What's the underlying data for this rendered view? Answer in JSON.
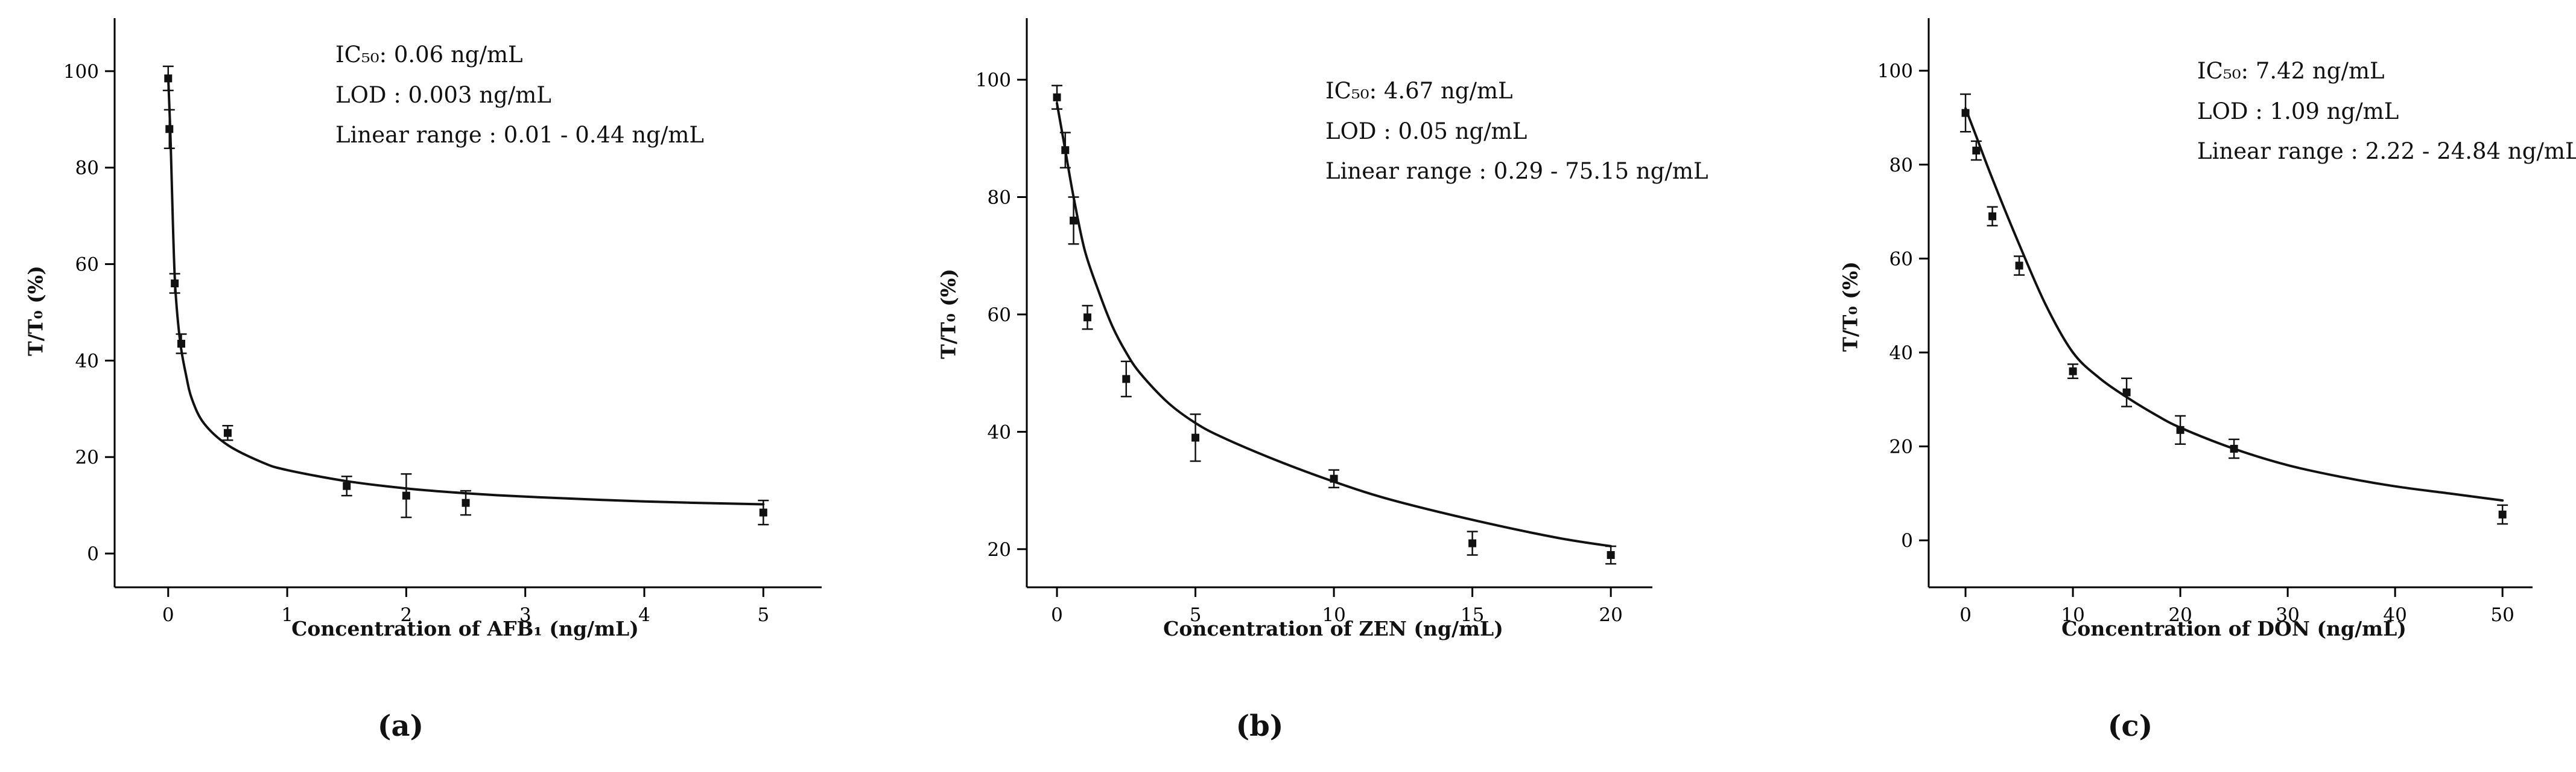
{
  "page": {
    "background": "#ffffff",
    "ink_color": "#111111"
  },
  "chart_data": [
    {
      "type": "scatter",
      "panel_label": "(a)",
      "xlabel": "Concentration of AFB₁ (ng/mL)",
      "ylabel": "T/T₀ (%)",
      "annotations": [
        "IC₅₀: 0.06 ng/mL",
        "LOD : 0.003 ng/mL",
        "Linear range : 0.01 - 0.44 ng/mL"
      ],
      "xlim": [
        -0.45,
        5.49
      ],
      "ylim": [
        -7,
        111
      ],
      "xticks": [
        0,
        1,
        2,
        3,
        4,
        5
      ],
      "yticks": [
        0,
        20,
        40,
        60,
        80,
        100
      ],
      "points": [
        [
          0,
          98.5,
          2.5
        ],
        [
          0.01,
          88,
          4
        ],
        [
          0.055,
          56,
          2
        ],
        [
          0.11,
          43.5,
          2
        ],
        [
          0.5,
          25,
          1.5
        ],
        [
          1.5,
          14,
          2
        ],
        [
          2,
          12,
          4.5
        ],
        [
          2.5,
          10.5,
          2.5
        ],
        [
          5,
          8.5,
          2.5
        ]
      ],
      "curve_points": [
        [
          0,
          99
        ],
        [
          0.02,
          86
        ],
        [
          0.04,
          68
        ],
        [
          0.06,
          55
        ],
        [
          0.1,
          44
        ],
        [
          0.15,
          37
        ],
        [
          0.2,
          32
        ],
        [
          0.3,
          27
        ],
        [
          0.5,
          22.5
        ],
        [
          0.8,
          18.8
        ],
        [
          1,
          17.3
        ],
        [
          1.5,
          15
        ],
        [
          2,
          13.5
        ],
        [
          2.5,
          12.5
        ],
        [
          3,
          11.8
        ],
        [
          4,
          10.8
        ],
        [
          5,
          10.2
        ]
      ]
    },
    {
      "type": "scatter",
      "panel_label": "(b)",
      "xlabel": "Concentration of ZEN (ng/mL)",
      "ylabel": "T/T₀ (%)",
      "annotations": [
        "IC₅₀: 4.67 ng/mL",
        "LOD : 0.05 ng/mL",
        "Linear range : 0.29 - 75.15 ng/mL"
      ],
      "xlim": [
        -1.09,
        21.5
      ],
      "ylim": [
        13.5,
        110.5
      ],
      "xticks": [
        0,
        5,
        10,
        15,
        20
      ],
      "yticks": [
        20,
        40,
        60,
        80,
        100
      ],
      "points": [
        [
          0,
          97,
          2
        ],
        [
          0.3,
          88,
          3
        ],
        [
          0.6,
          76,
          4
        ],
        [
          1.1,
          59.5,
          2
        ],
        [
          2.5,
          49,
          3
        ],
        [
          5,
          39,
          4
        ],
        [
          10,
          32,
          1.5
        ],
        [
          15,
          21,
          2
        ],
        [
          20,
          19,
          1.5
        ]
      ],
      "curve_points": [
        [
          0,
          96
        ],
        [
          0.3,
          88
        ],
        [
          0.6,
          80
        ],
        [
          1,
          71
        ],
        [
          1.5,
          64
        ],
        [
          2,
          58
        ],
        [
          2.5,
          53.5
        ],
        [
          3,
          50
        ],
        [
          4,
          45
        ],
        [
          5,
          41.5
        ],
        [
          6,
          39
        ],
        [
          8,
          35
        ],
        [
          10,
          31.5
        ],
        [
          12,
          28.5
        ],
        [
          15,
          25
        ],
        [
          18,
          22
        ],
        [
          20,
          20.5
        ]
      ]
    },
    {
      "type": "scatter",
      "panel_label": "(c)",
      "xlabel": "Concentration of DON (ng/mL)",
      "ylabel": "T/T₀ (%)",
      "annotations": [
        "IC₅₀: 7.42 ng/mL",
        "LOD : 1.09 ng/mL",
        "Linear range : 2.22 - 24.84 ng/mL"
      ],
      "xlim": [
        -3.43,
        52.8
      ],
      "ylim": [
        -10,
        111.2
      ],
      "xticks": [
        0,
        10,
        20,
        30,
        40,
        50
      ],
      "yticks": [
        0,
        20,
        40,
        60,
        80,
        100
      ],
      "points": [
        [
          0,
          91,
          4
        ],
        [
          1,
          83,
          2
        ],
        [
          2.5,
          69,
          2
        ],
        [
          5,
          58.5,
          2
        ],
        [
          10,
          36,
          1.5
        ],
        [
          15,
          31.5,
          3
        ],
        [
          20,
          23.5,
          3
        ],
        [
          25,
          19.5,
          2
        ],
        [
          50,
          5.5,
          2
        ]
      ],
      "curve_points": [
        [
          0,
          92
        ],
        [
          1,
          86
        ],
        [
          2.5,
          77
        ],
        [
          5,
          63
        ],
        [
          7.5,
          50
        ],
        [
          10,
          40
        ],
        [
          12.5,
          34.5
        ],
        [
          15,
          30.5
        ],
        [
          17.5,
          27
        ],
        [
          20,
          24
        ],
        [
          25,
          19.5
        ],
        [
          30,
          16
        ],
        [
          35,
          13.5
        ],
        [
          40,
          11.5
        ],
        [
          45,
          10
        ],
        [
          50,
          8.5
        ]
      ]
    }
  ]
}
